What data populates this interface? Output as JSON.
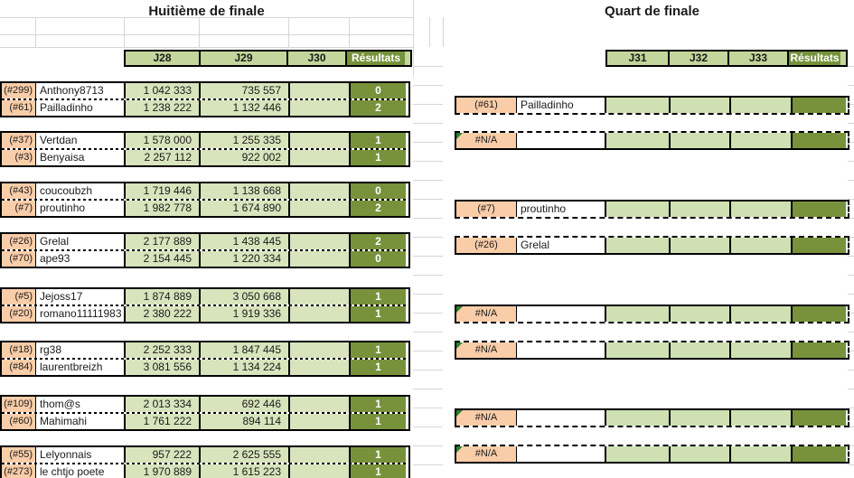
{
  "titles": {
    "left": "Huitième de finale",
    "right": "Quart de finale"
  },
  "colors": {
    "seed_cell": "#facda9",
    "header_green": "#c3d69b",
    "score_green": "#d7e4bc",
    "qf_green": "#cfe0b2",
    "result_dark_green": "#78923c",
    "error_indicator_green": "#2e7d32"
  },
  "left_table": {
    "headers": [
      "J28",
      "J29",
      "J30",
      "Résultats"
    ],
    "matches": [
      {
        "rows": [
          {
            "id": "(#299)",
            "name": "Anthony8713",
            "j28": "1 042 333",
            "j29": "735 557",
            "j30": "",
            "result": "0"
          },
          {
            "id": "(#61)",
            "name": "Pailladinho",
            "j28": "1 238 222",
            "j29": "1 132 446",
            "j30": "",
            "result": "2"
          }
        ]
      },
      {
        "rows": [
          {
            "id": "(#37)",
            "name": "Vertdan",
            "j28": "1 578 000",
            "j29": "1 255 335",
            "j30": "",
            "result": "1"
          },
          {
            "id": "(#3)",
            "name": "Benyaisa",
            "j28": "2 257 112",
            "j29": "922 002",
            "j30": "",
            "result": "1"
          }
        ]
      },
      {
        "rows": [
          {
            "id": "(#43)",
            "name": "coucoubzh",
            "j28": "1 719 446",
            "j29": "1 138 668",
            "j30": "",
            "result": "0"
          },
          {
            "id": "(#7)",
            "name": "proutinho",
            "j28": "1 982 778",
            "j29": "1 674 890",
            "j30": "",
            "result": "2"
          }
        ]
      },
      {
        "rows": [
          {
            "id": "(#26)",
            "name": "Grelal",
            "j28": "2 177 889",
            "j29": "1 438 445",
            "j30": "",
            "result": "2"
          },
          {
            "id": "(#70)",
            "name": "ape93",
            "j28": "2 154 445",
            "j29": "1 220 334",
            "j30": "",
            "result": "0"
          }
        ]
      },
      {
        "rows": [
          {
            "id": "(#5)",
            "name": "Jejoss17",
            "j28": "1 874 889",
            "j29": "3 050 668",
            "j30": "",
            "result": "1"
          },
          {
            "id": "(#20)",
            "name": "romano11111983",
            "j28": "2 380 222",
            "j29": "1 919 336",
            "j30": "",
            "result": "1"
          }
        ]
      },
      {
        "rows": [
          {
            "id": "(#18)",
            "name": "rg38",
            "j28": "2 252 333",
            "j29": "1 847 445",
            "j30": "",
            "result": "1"
          },
          {
            "id": "(#84)",
            "name": "laurentbreizh",
            "j28": "3 081 556",
            "j29": "1 134 224",
            "j30": "",
            "result": "1"
          }
        ]
      },
      {
        "rows": [
          {
            "id": "(#109)",
            "name": "thom@s",
            "j28": "2 013 334",
            "j29": "692 446",
            "j30": "",
            "result": "1"
          },
          {
            "id": "(#60)",
            "name": "Mahimahi",
            "j28": "1 761 222",
            "j29": "894 114",
            "j30": "",
            "result": "1"
          }
        ]
      },
      {
        "rows": [
          {
            "id": "(#55)",
            "name": "Lelyonnais",
            "j28": "957 222",
            "j29": "2 625 555",
            "j30": "",
            "result": "1"
          },
          {
            "id": "(#273)",
            "name": "le chtjo poete",
            "j28": "1 970 889",
            "j29": "1 615 223",
            "j30": "",
            "result": "1"
          }
        ]
      }
    ]
  },
  "right_table": {
    "headers": [
      "J31",
      "J32",
      "J33",
      "Résultats"
    ],
    "entries": [
      {
        "id": "(#61)",
        "name": "Pailladinho",
        "error": false
      },
      {
        "id": "#N/A",
        "name": "",
        "error": true
      },
      {
        "id": "(#7)",
        "name": "proutinho",
        "error": false
      },
      {
        "id": "(#26)",
        "name": "Grelal",
        "error": false
      },
      {
        "id": "#N/A",
        "name": "",
        "error": true
      },
      {
        "id": "#N/A",
        "name": "",
        "error": true
      },
      {
        "id": "#N/A",
        "name": "",
        "error": true
      },
      {
        "id": "#N/A",
        "name": "",
        "error": true
      }
    ]
  }
}
